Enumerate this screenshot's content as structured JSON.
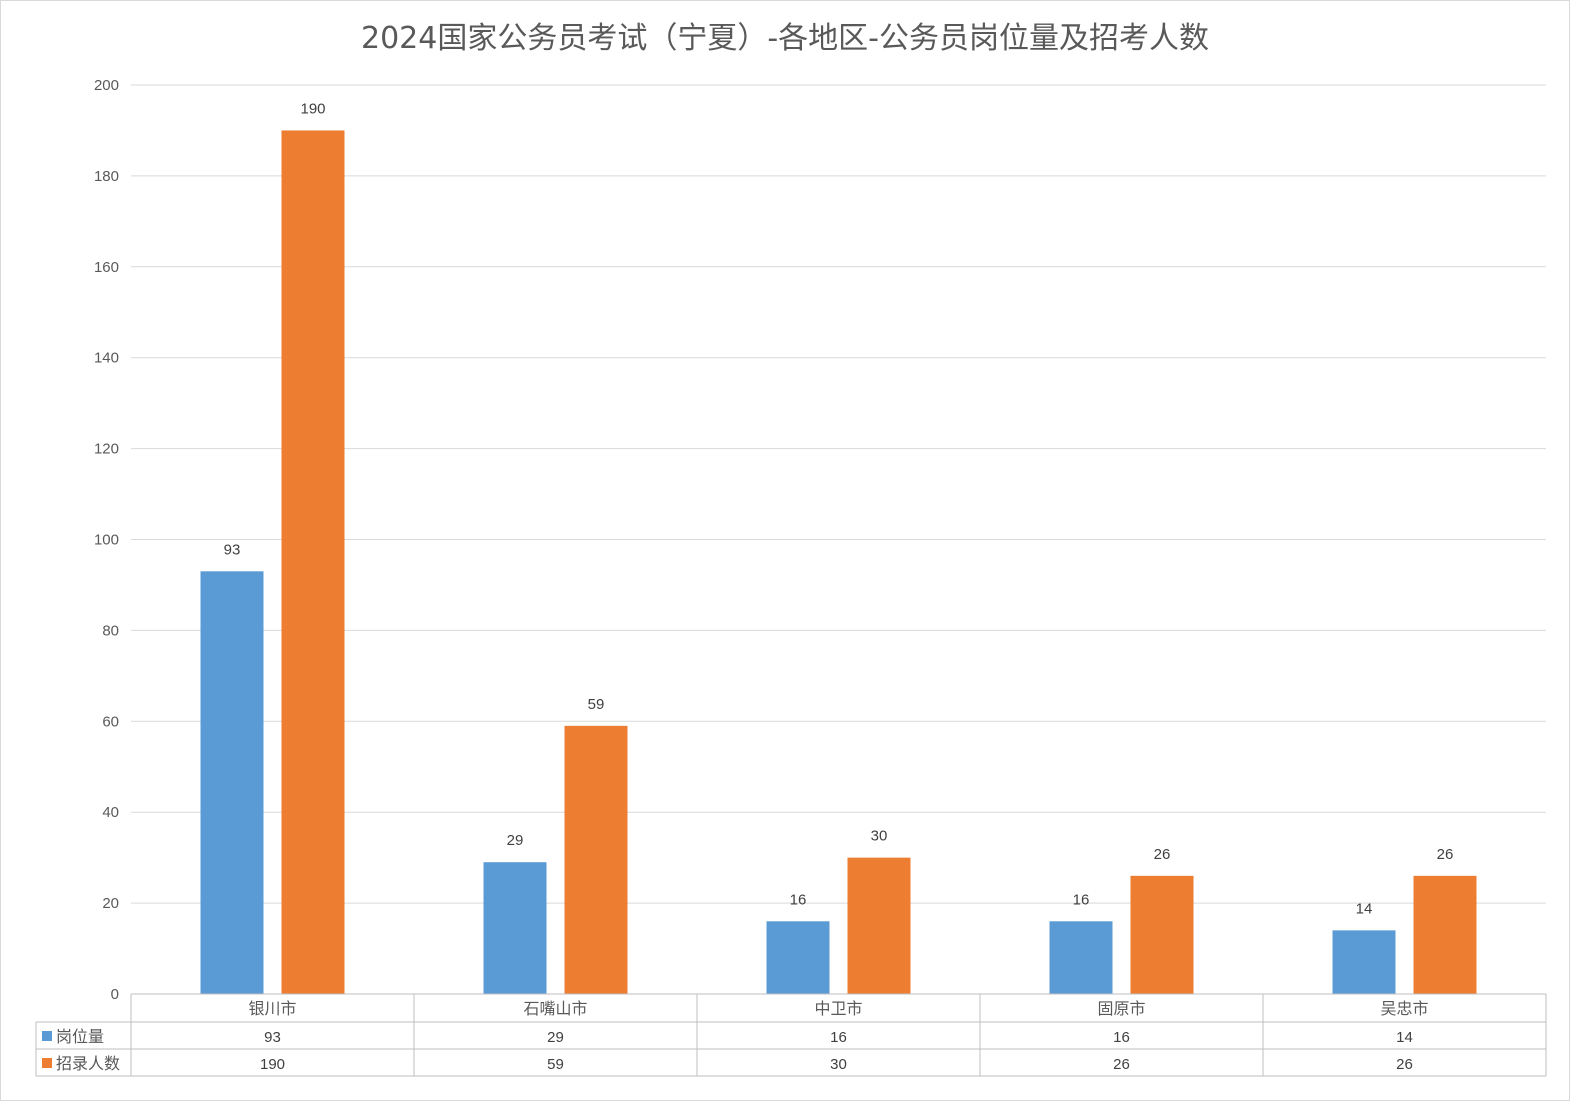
{
  "chart_data": {
    "type": "bar",
    "title": "2024国家公务员考试（宁夏）-各地区-公务员岗位量及招考人数",
    "categories": [
      "银川市",
      "石嘴山市",
      "中卫市",
      "固原市",
      "吴忠市"
    ],
    "series": [
      {
        "name": "岗位量",
        "color": "#5b9bd5",
        "values": [
          93,
          29,
          16,
          16,
          14
        ]
      },
      {
        "name": "招录人数",
        "color": "#ed7d31",
        "values": [
          190,
          59,
          30,
          26,
          26
        ]
      }
    ],
    "ylim": [
      0,
      200
    ],
    "yticks": [
      0,
      20,
      40,
      60,
      80,
      100,
      120,
      140,
      160,
      180,
      200
    ],
    "grid": true,
    "data_labels": true,
    "legend": "data-table"
  }
}
